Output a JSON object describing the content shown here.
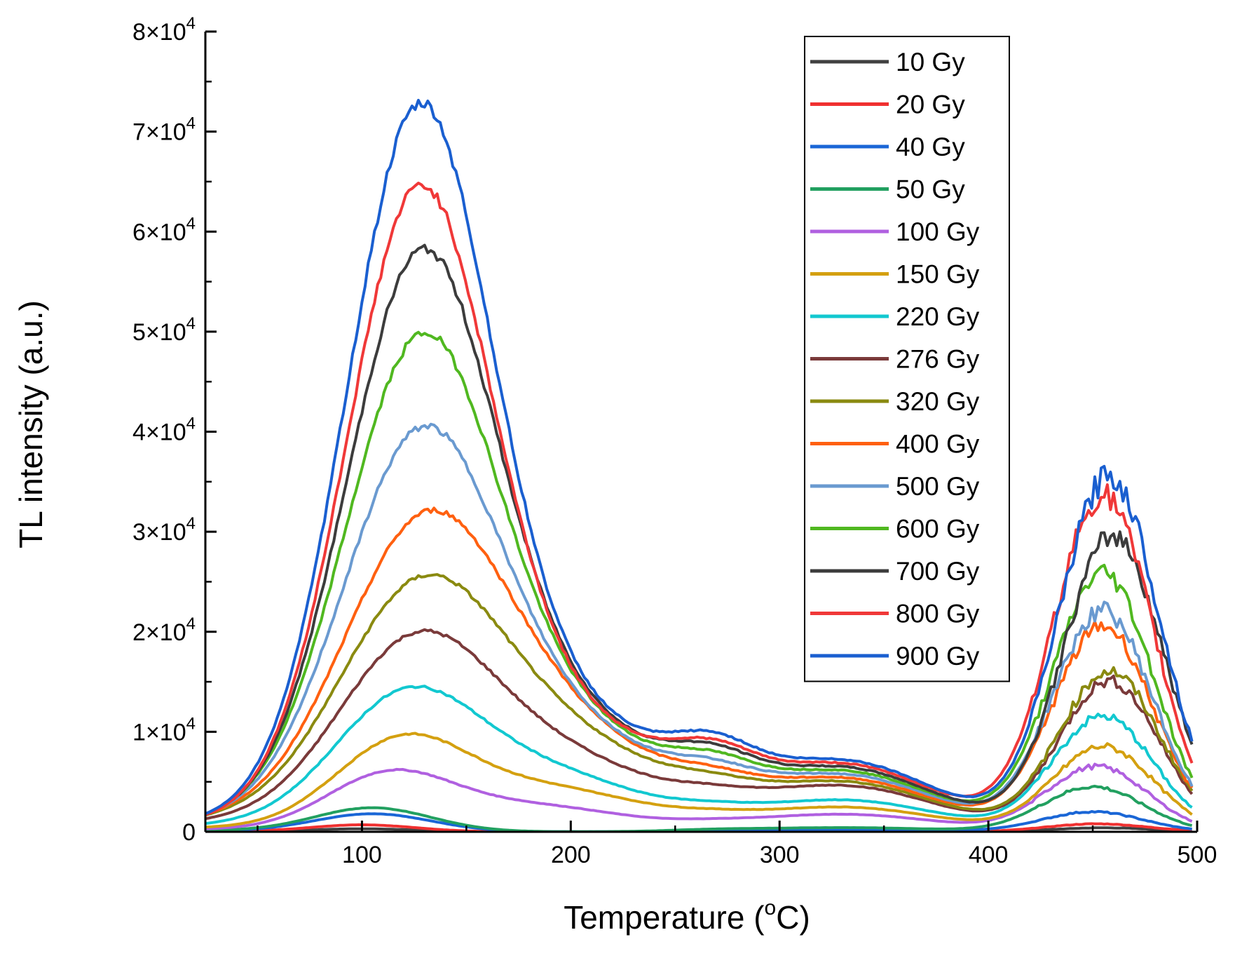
{
  "chart_data": {
    "type": "line",
    "title": "",
    "xlabel": "Temperature (",
    "xlabel_sup": "o",
    "xlabel_end": "C)",
    "ylabel": "TL intensity (a.u.)",
    "xlim": [
      25,
      500
    ],
    "ylim": [
      0,
      80000
    ],
    "x_ticks": [
      100,
      200,
      300,
      400,
      500
    ],
    "x_tick_labels": [
      "100",
      "200",
      "300",
      "400",
      "500"
    ],
    "y_ticks": [
      0,
      10000,
      20000,
      30000,
      40000,
      50000,
      60000,
      70000,
      80000
    ],
    "y_tick_labels": [
      {
        "mant": "0",
        "exp": ""
      },
      {
        "mant": "1×10",
        "exp": "4"
      },
      {
        "mant": "2×10",
        "exp": "4"
      },
      {
        "mant": "3×10",
        "exp": "4"
      },
      {
        "mant": "4×10",
        "exp": "4"
      },
      {
        "mant": "5×10",
        "exp": "4"
      },
      {
        "mant": "6×10",
        "exp": "4"
      },
      {
        "mant": "7×10",
        "exp": "4"
      },
      {
        "mant": "8×10",
        "exp": "4"
      }
    ],
    "legend_position": "top-right",
    "series": [
      {
        "name": "10 Gy",
        "color": "#404040",
        "peaks": [
          {
            "c": 100,
            "w": 25,
            "h": 300
          }
        ],
        "high": 400,
        "hc": 455,
        "tail": 0
      },
      {
        "name": "20 Gy",
        "color": "#f03030",
        "peaks": [
          {
            "c": 100,
            "w": 25,
            "h": 700
          }
        ],
        "high": 800,
        "hc": 452,
        "tail": 0
      },
      {
        "name": "40 Gy",
        "color": "#1a66d6",
        "peaks": [
          {
            "c": 105,
            "w": 28,
            "h": 1800
          }
        ],
        "high": 2000,
        "hc": 450,
        "tail": 300
      },
      {
        "name": "50 Gy",
        "color": "#22a060",
        "peaks": [
          {
            "c": 105,
            "w": 28,
            "h": 2400
          }
        ],
        "high": 4500,
        "hc": 450,
        "tail": 600
      },
      {
        "name": "100 Gy",
        "color": "#b060e0",
        "peaks": [
          {
            "c": 112,
            "w": 30,
            "h": 5300
          },
          {
            "c": 180,
            "w": 45,
            "h": 2600
          }
        ],
        "high": 6500,
        "hc": 452,
        "tail": 2500
      },
      {
        "name": "150 Gy",
        "color": "#d4a010",
        "peaks": [
          {
            "c": 118,
            "w": 32,
            "h": 8500
          },
          {
            "c": 190,
            "w": 45,
            "h": 4200
          }
        ],
        "high": 8500,
        "hc": 455,
        "tail": 3500
      },
      {
        "name": "220 Gy",
        "color": "#12c8d0",
        "peaks": [
          {
            "c": 120,
            "w": 35,
            "h": 12700
          },
          {
            "c": 190,
            "w": 45,
            "h": 5500
          }
        ],
        "high": 11500,
        "hc": 455,
        "tail": 4500
      },
      {
        "name": "276 Gy",
        "color": "#7a3a3a",
        "peaks": [
          {
            "c": 125,
            "w": 38,
            "h": 18300
          },
          {
            "c": 200,
            "w": 45,
            "h": 6500
          }
        ],
        "high": 15000,
        "hc": 458,
        "tail": 6500
      },
      {
        "name": "320 Gy",
        "color": "#8a8a10",
        "peaks": [
          {
            "c": 128,
            "w": 40,
            "h": 23800
          },
          {
            "c": 205,
            "w": 45,
            "h": 7500
          }
        ],
        "high": 16000,
        "hc": 458,
        "tail": 7000
      },
      {
        "name": "400 Gy",
        "color": "#ff6010",
        "peaks": [
          {
            "c": 130,
            "w": 40,
            "h": 30000
          },
          {
            "c": 205,
            "w": 45,
            "h": 8000
          }
        ],
        "high": 20500,
        "hc": 455,
        "tail": 7500
      },
      {
        "name": "500 Gy",
        "color": "#6a9ad0",
        "peaks": [
          {
            "c": 128,
            "w": 38,
            "h": 38500
          },
          {
            "c": 205,
            "w": 45,
            "h": 8500
          }
        ],
        "high": 22000,
        "hc": 455,
        "tail": 8000
      },
      {
        "name": "600 Gy",
        "color": "#50b820",
        "peaks": [
          {
            "c": 128,
            "w": 37,
            "h": 47700
          },
          {
            "c": 205,
            "w": 45,
            "h": 9000
          }
        ],
        "high": 25800,
        "hc": 455,
        "tail": 8500
      },
      {
        "name": "700 Gy",
        "color": "#3c3c3c",
        "peaks": [
          {
            "c": 128,
            "w": 36,
            "h": 56000
          },
          {
            "c": 205,
            "w": 45,
            "h": 9500
          }
        ],
        "high": 29500,
        "hc": 460,
        "tail": 9000
      },
      {
        "name": "800 Gy",
        "color": "#f03838",
        "peaks": [
          {
            "c": 127,
            "w": 35,
            "h": 62500
          },
          {
            "c": 205,
            "w": 45,
            "h": 9500
          }
        ],
        "high": 33500,
        "hc": 455,
        "tail": 9500
      },
      {
        "name": "900 Gy",
        "color": "#1a5fd0",
        "peaks": [
          {
            "c": 127,
            "w": 35,
            "h": 70500
          },
          {
            "c": 205,
            "w": 45,
            "h": 10000
          }
        ],
        "high": 35500,
        "hc": 458,
        "tail": 10000
      }
    ]
  }
}
